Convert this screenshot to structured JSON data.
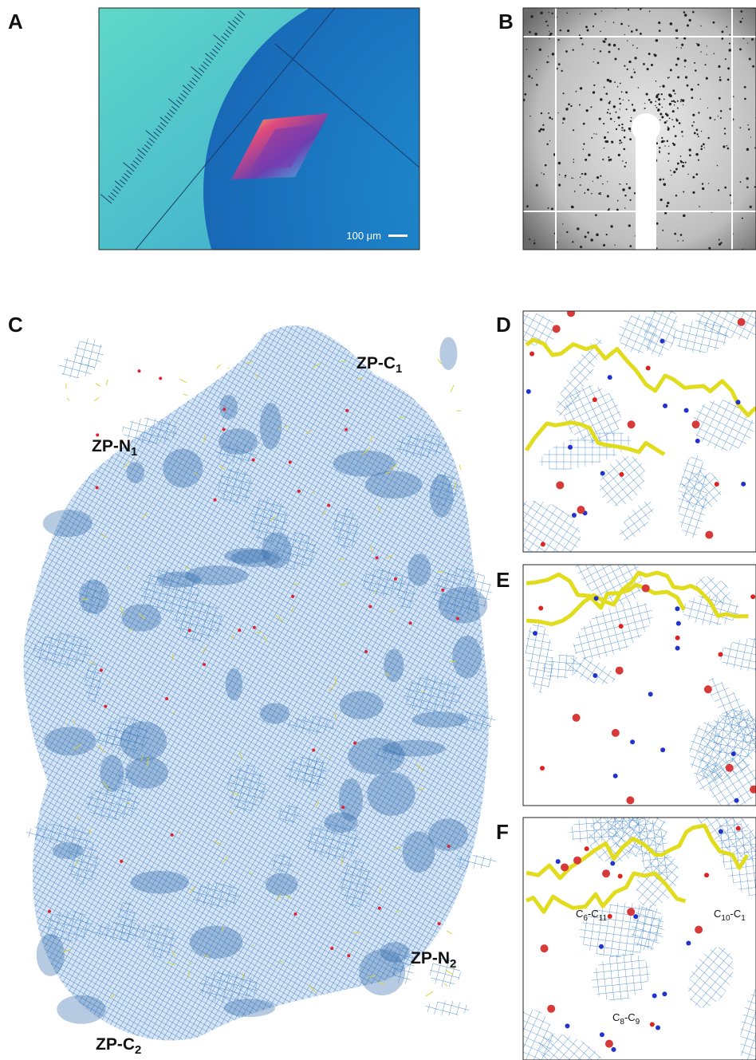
{
  "panels": {
    "a": {
      "letter": "A",
      "scale_bar": "100 μm"
    },
    "b": {
      "letter": "B"
    },
    "c": {
      "letter": "C",
      "labels": [
        [
          {
            "t": "ZP-C"
          },
          {
            "sub": "1"
          }
        ],
        [
          {
            "t": "ZP-N"
          },
          {
            "sub": "1"
          }
        ],
        [
          {
            "t": "ZP-N"
          },
          {
            "sub": "2"
          }
        ],
        [
          {
            "t": "ZP-C"
          },
          {
            "sub": "2"
          }
        ]
      ]
    },
    "d": {
      "letter": "D"
    },
    "e": {
      "letter": "E"
    },
    "f": {
      "letter": "F",
      "labels": [
        [
          {
            "t": "C"
          },
          {
            "sub": "6"
          },
          {
            "t": "-C"
          },
          {
            "sub": "11"
          }
        ],
        [
          {
            "t": "C"
          },
          {
            "sub": "10"
          },
          {
            "t": "-C"
          },
          {
            "sub": "1"
          }
        ],
        [
          {
            "t": "C"
          },
          {
            "sub": "8"
          },
          {
            "t": "-C"
          },
          {
            "sub": "9"
          }
        ]
      ]
    }
  }
}
